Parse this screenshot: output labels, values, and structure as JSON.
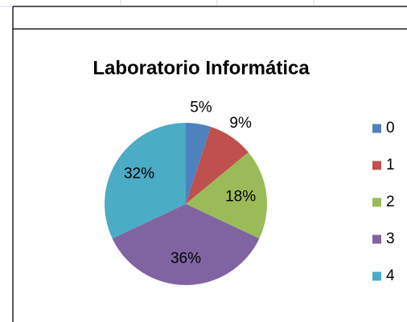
{
  "chart_data": {
    "type": "pie",
    "title": "Laboratorio Informática",
    "categories": [
      "0",
      "1",
      "2",
      "3",
      "4"
    ],
    "values": [
      5,
      9,
      18,
      36,
      32
    ],
    "value_labels": [
      "5%",
      "9%",
      "18%",
      "36%",
      "32%"
    ],
    "colors": [
      "#4f81bd",
      "#c0504d",
      "#9bbb59",
      "#8064a2",
      "#4bacc6"
    ],
    "legend": "right"
  }
}
